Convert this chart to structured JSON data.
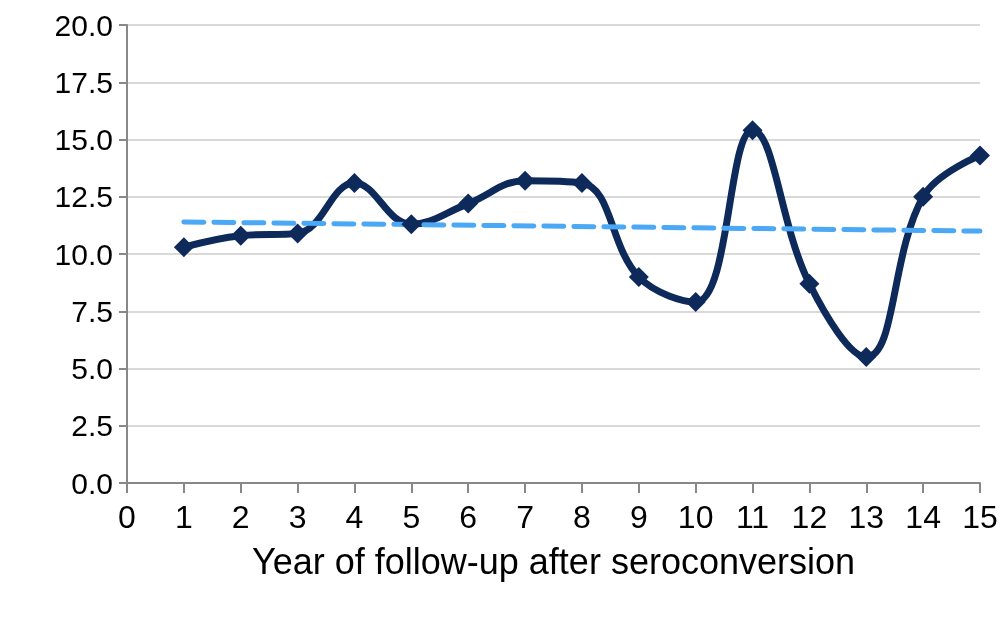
{
  "chart_data": {
    "type": "line",
    "xlabel": "Year of follow-up after seroconversion",
    "x": [
      1,
      2,
      3,
      4,
      5,
      6,
      7,
      8,
      9,
      10,
      11,
      12,
      13,
      14,
      15
    ],
    "series": [
      {
        "color": "#0d2a5a",
        "values": [
          10.3,
          10.8,
          10.9,
          13.1,
          11.3,
          12.2,
          13.2,
          13.1,
          9.0,
          7.9,
          15.4,
          8.7,
          5.5,
          12.5,
          14.3
        ],
        "marker": "diamond",
        "line_style": "solid"
      },
      {
        "type": "line",
        "color": "#4aa8f5",
        "x": [
          1,
          15
        ],
        "values": [
          11.4,
          11.0
        ],
        "marker": "none",
        "line_style": "dashed"
      }
    ],
    "xlim": [
      0,
      15
    ],
    "xticks": [
      0,
      1,
      2,
      3,
      4,
      5,
      6,
      7,
      8,
      9,
      10,
      11,
      12,
      13,
      14,
      15
    ],
    "ylim": [
      0,
      20
    ],
    "yticks": [
      {
        "value": 0,
        "label": "0.0"
      },
      {
        "value": 2.5,
        "label": "2.5"
      },
      {
        "value": 5,
        "label": "5.0"
      },
      {
        "value": 7.5,
        "label": "7.5"
      },
      {
        "value": 10,
        "label": "10.0"
      },
      {
        "value": 12.5,
        "label": "12.5"
      },
      {
        "value": 15,
        "label": "15.0"
      },
      {
        "value": 17.5,
        "label": "17.5"
      },
      {
        "value": 20,
        "label": "20.0"
      }
    ],
    "grid": "y"
  }
}
